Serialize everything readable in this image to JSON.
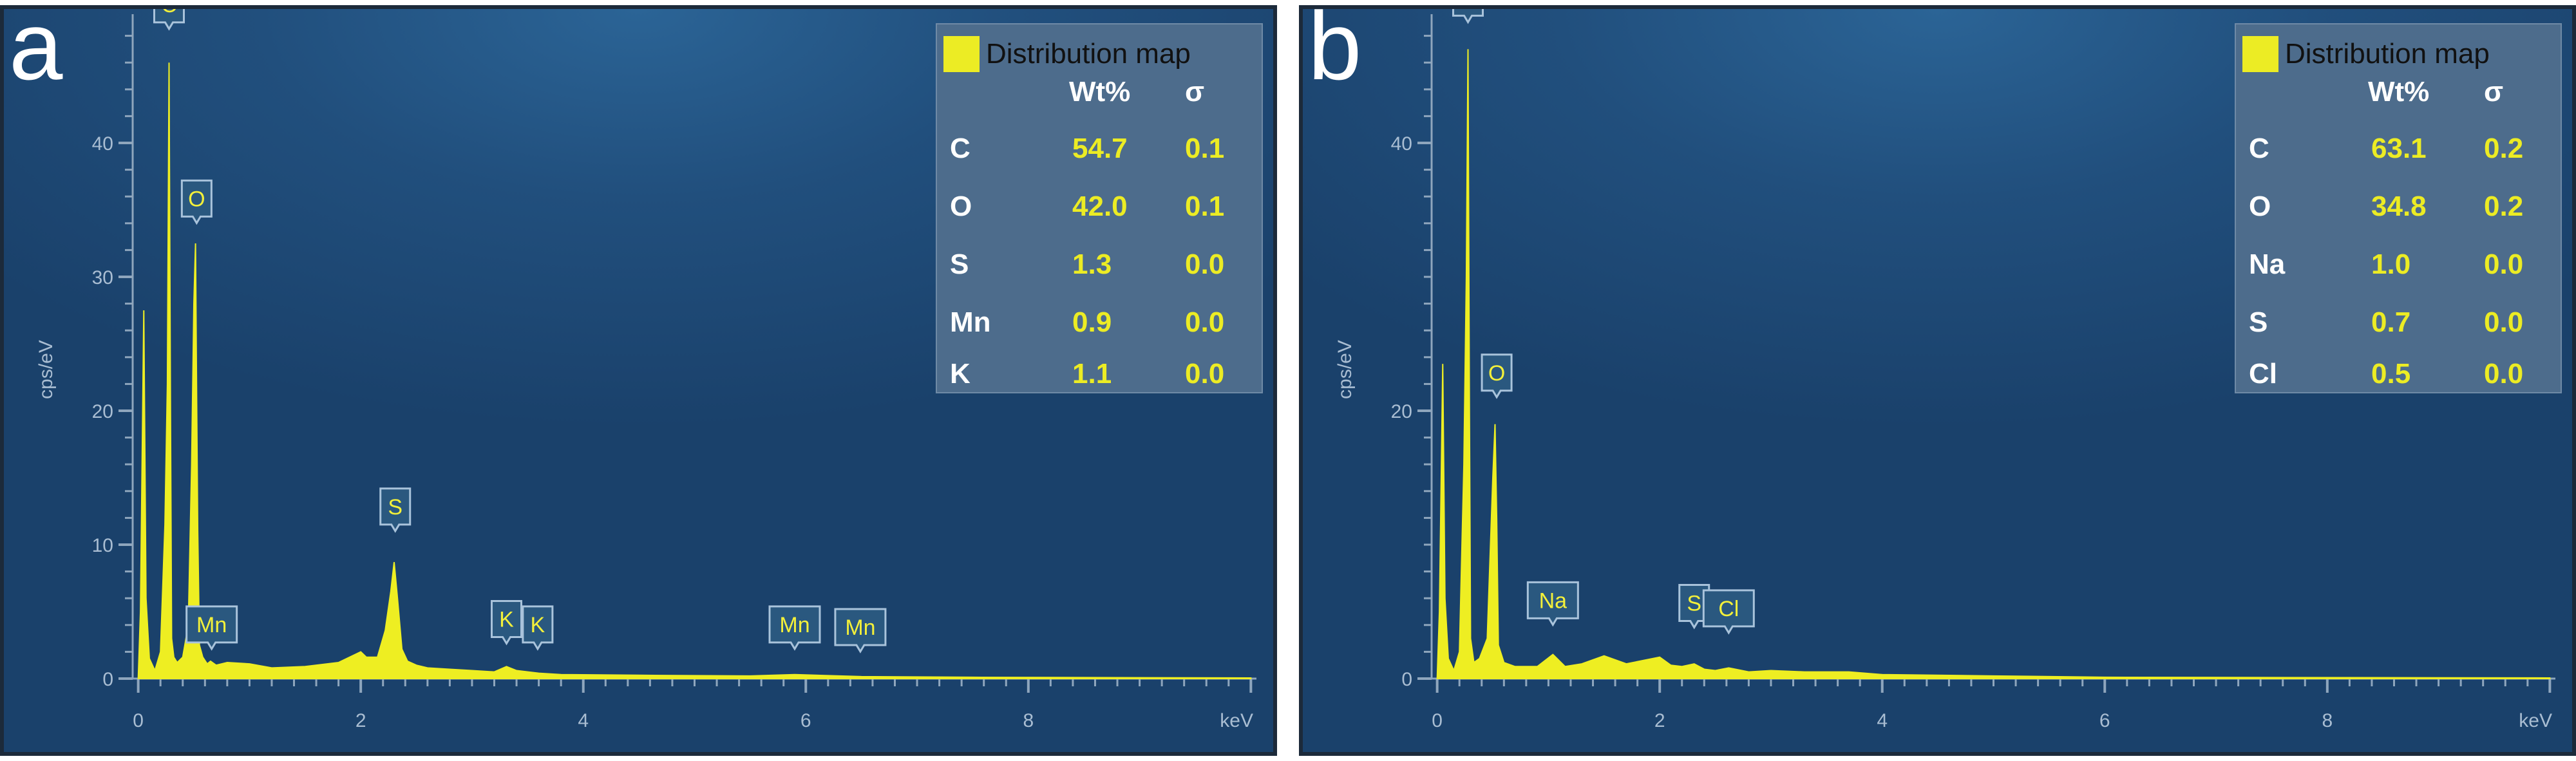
{
  "colors": {
    "spectrum": "#eeee22",
    "background": "#214f7d",
    "legend_bg": "#4d6c8c",
    "value_text": "#ecec24",
    "axis": "#a9bdd2"
  },
  "chart_data": [
    {
      "type": "line",
      "panel_label": "a",
      "xlabel": "keV",
      "ylabel": "cps/eV",
      "xlim": [
        -0.05,
        10.05
      ],
      "ylim": [
        0,
        50
      ],
      "xticks": [
        "0",
        "2",
        "4",
        "6",
        "8"
      ],
      "yticks": [
        "0",
        "10",
        "20",
        "30",
        "40"
      ],
      "series": [
        {
          "name": "",
          "x": [
            0,
            0.02,
            0.05,
            0.07,
            0.1,
            0.15,
            0.2,
            0.24,
            0.262,
            0.277,
            0.29,
            0.3,
            0.32,
            0.35,
            0.4,
            0.45,
            0.48,
            0.5,
            0.515,
            0.525,
            0.535,
            0.55,
            0.58,
            0.62,
            0.65,
            0.7,
            0.8,
            1.0,
            1.2,
            1.5,
            1.8,
            2.0,
            2.05,
            2.15,
            2.22,
            2.27,
            2.3,
            2.33,
            2.37,
            2.42,
            2.5,
            2.6,
            2.8,
            3.0,
            3.2,
            3.31,
            3.4,
            3.6,
            3.8,
            4.5,
            5.5,
            5.9,
            6.5,
            7.5,
            10
          ],
          "y": [
            0,
            5,
            27.5,
            6,
            1.5,
            0.6,
            2,
            11.5,
            22,
            46,
            20,
            3,
            1.6,
            1.2,
            1.6,
            4,
            16,
            28,
            32.5,
            21,
            11,
            2.5,
            1.6,
            1.1,
            1.3,
            1,
            1.2,
            1.1,
            0.8,
            0.9,
            1.2,
            2,
            1.6,
            1.6,
            3.6,
            6.5,
            8.7,
            6,
            2.2,
            1.3,
            1,
            0.8,
            0.7,
            0.6,
            0.5,
            0.9,
            0.6,
            0.4,
            0.3,
            0.25,
            0.2,
            0.3,
            0.15,
            0.1,
            0.05
          ]
        }
      ],
      "peak_labels": [
        {
          "text": "C",
          "x": 0.277,
          "y": 49
        },
        {
          "text": "O",
          "x": 0.525,
          "y": 34.5
        },
        {
          "text": "Mn",
          "x": 0.66,
          "y": 2.7
        },
        {
          "text": "S",
          "x": 2.31,
          "y": 11.5
        },
        {
          "text": "K",
          "x": 3.31,
          "y": 3.1
        },
        {
          "text": "K",
          "x": 3.59,
          "y": 2.7
        },
        {
          "text": "Mn",
          "x": 5.9,
          "y": 2.7
        },
        {
          "text": "Mn",
          "x": 6.49,
          "y": 2.5
        }
      ],
      "legend": {
        "title": "Distribution map",
        "col_headers": [
          "Wt%",
          "σ"
        ],
        "rows": [
          {
            "element": "C",
            "wt": "54.7",
            "sigma": "0.1"
          },
          {
            "element": "O",
            "wt": "42.0",
            "sigma": "0.1"
          },
          {
            "element": "S",
            "wt": "1.3",
            "sigma": "0.0"
          },
          {
            "element": "Mn",
            "wt": "0.9",
            "sigma": "0.0"
          },
          {
            "element": "K",
            "wt": "1.1",
            "sigma": "0.0"
          }
        ]
      }
    },
    {
      "type": "line",
      "panel_label": "b",
      "xlabel": "keV",
      "ylabel": "cps/eV",
      "xlim": [
        -0.05,
        10.05
      ],
      "ylim": [
        0,
        50
      ],
      "xticks": [
        "0",
        "2",
        "4",
        "6",
        "8"
      ],
      "yticks": [
        "0",
        "20",
        "40"
      ],
      "series": [
        {
          "name": "",
          "x": [
            0,
            0.02,
            0.05,
            0.07,
            0.1,
            0.15,
            0.2,
            0.24,
            0.262,
            0.277,
            0.29,
            0.3,
            0.33,
            0.38,
            0.45,
            0.5,
            0.52,
            0.535,
            0.55,
            0.6,
            0.7,
            0.9,
            1.04,
            1.15,
            1.3,
            1.5,
            1.7,
            2.0,
            2.1,
            2.2,
            2.31,
            2.4,
            2.5,
            2.62,
            2.8,
            3.0,
            3.3,
            3.7,
            4.0,
            5.0,
            6.0,
            10
          ],
          "y": [
            0,
            5,
            23.5,
            6,
            1.5,
            0.6,
            2,
            16,
            30,
            47,
            20,
            3,
            1.2,
            1.5,
            3,
            15,
            19,
            12,
            2.5,
            1.2,
            0.9,
            0.9,
            1.8,
            0.9,
            1.1,
            1.7,
            1.1,
            1.6,
            1,
            0.9,
            1.1,
            0.7,
            0.6,
            0.8,
            0.5,
            0.6,
            0.5,
            0.5,
            0.3,
            0.2,
            0.1,
            0.05
          ]
        }
      ],
      "peak_labels": [
        {
          "text": "C",
          "x": 0.277,
          "y": 49.5
        },
        {
          "text": "O",
          "x": 0.535,
          "y": 21.5
        },
        {
          "text": "Na",
          "x": 1.04,
          "y": 4.5
        },
        {
          "text": "S",
          "x": 2.31,
          "y": 4.3
        },
        {
          "text": "Cl",
          "x": 2.62,
          "y": 3.9
        }
      ],
      "legend": {
        "title": "Distribution map",
        "col_headers": [
          "Wt%",
          "σ"
        ],
        "rows": [
          {
            "element": "C",
            "wt": "63.1",
            "sigma": "0.2"
          },
          {
            "element": "O",
            "wt": "34.8",
            "sigma": "0.2"
          },
          {
            "element": "Na",
            "wt": "1.0",
            "sigma": "0.0"
          },
          {
            "element": "S",
            "wt": "0.7",
            "sigma": "0.0"
          },
          {
            "element": "Cl",
            "wt": "0.5",
            "sigma": "0.0"
          }
        ]
      }
    }
  ]
}
